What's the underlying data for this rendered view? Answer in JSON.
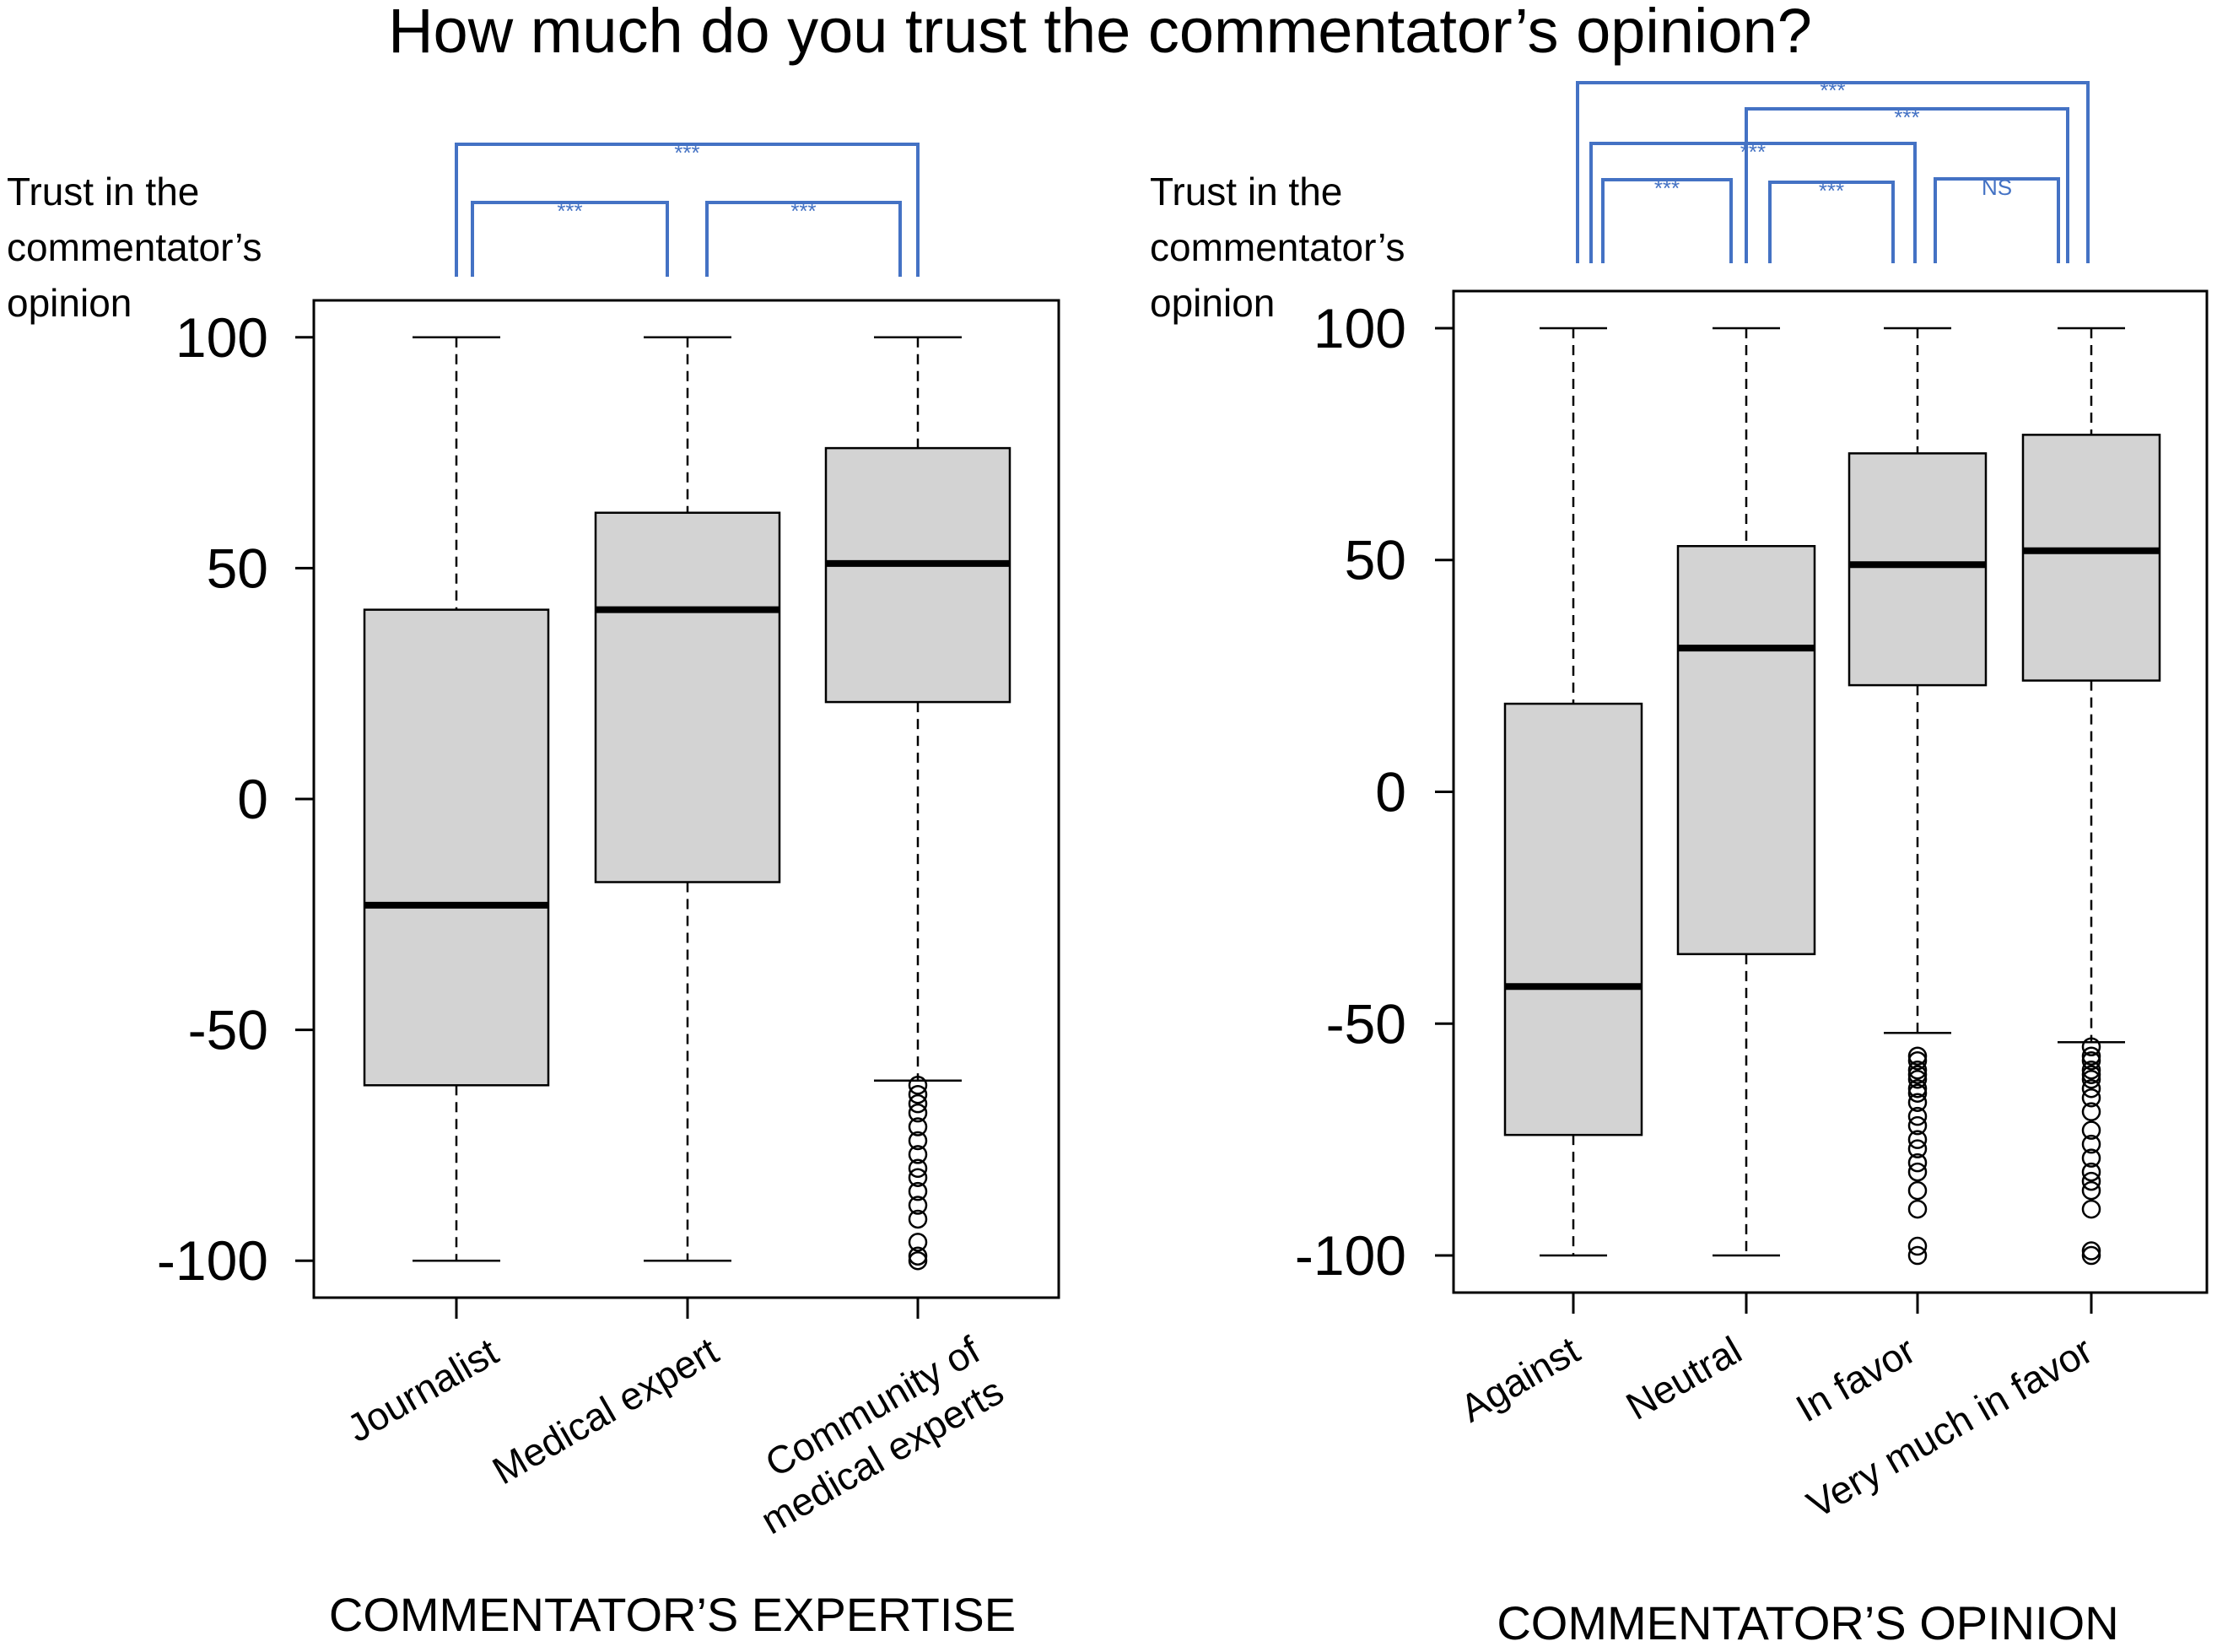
{
  "title": "How much do you trust the commentator’s opinion?",
  "chart_data": [
    {
      "type": "box",
      "xlabel": "COMMENTATOR’S EXPERTISE",
      "ylabel": [
        "Trust in the",
        "commentator’s",
        "opinion"
      ],
      "ylim": [
        -108,
        108
      ],
      "yticks": [
        "100",
        "50",
        "0",
        "-50",
        "-100"
      ],
      "boxes": [
        {
          "category": [
            "Journalist"
          ],
          "min": -100,
          "q1": -62,
          "median": -23,
          "q3": 41,
          "max": 100,
          "outliers": []
        },
        {
          "category": [
            "Medical expert"
          ],
          "min": -100,
          "q1": -18,
          "median": 41,
          "q3": 62,
          "max": 100,
          "outliers": []
        },
        {
          "category": [
            "Community of",
            "medical experts"
          ],
          "min": -61,
          "q1": 21,
          "median": 51,
          "q3": 76,
          "max": 100,
          "outliers": [
            -62,
            -64,
            -66,
            -68,
            -71,
            -74,
            -77,
            -80,
            -82,
            -85,
            -88,
            -91,
            -96,
            -99,
            -100
          ]
        }
      ],
      "comparisons": [
        {
          "groups": [
            0,
            2
          ],
          "label": "***"
        },
        {
          "groups": [
            0,
            1
          ],
          "label": "***"
        },
        {
          "groups": [
            1,
            2
          ],
          "label": "***"
        }
      ]
    },
    {
      "type": "box",
      "xlabel": "COMMENTATOR’S OPINION",
      "ylabel": [
        "Trust in the",
        "commentator’s",
        "opinion"
      ],
      "ylim": [
        -108,
        108
      ],
      "yticks": [
        "100",
        "50",
        "0",
        "-50",
        "-100"
      ],
      "boxes": [
        {
          "category": [
            "Against"
          ],
          "min": -100,
          "q1": -74,
          "median": -42,
          "q3": 19,
          "max": 100,
          "outliers": []
        },
        {
          "category": [
            "Neutral"
          ],
          "min": -100,
          "q1": -35,
          "median": 31,
          "q3": 53,
          "max": 100,
          "outliers": []
        },
        {
          "category": [
            "In favor"
          ],
          "min": -52,
          "q1": 23,
          "median": 49,
          "q3": 73,
          "max": 100,
          "outliers": [
            -57,
            -58,
            -60,
            -61,
            -62,
            -64,
            -65,
            -67,
            -70,
            -72,
            -75,
            -77,
            -80,
            -82,
            -86,
            -90,
            -98,
            -100
          ]
        },
        {
          "category": [
            "Very much in favor"
          ],
          "min": -54,
          "q1": 24,
          "median": 52,
          "q3": 77,
          "max": 100,
          "outliers": [
            -55,
            -57,
            -58,
            -60,
            -61,
            -62,
            -64,
            -66,
            -69,
            -73,
            -76,
            -79,
            -82,
            -84,
            -86,
            -90,
            -99,
            -100
          ]
        }
      ],
      "comparisons": [
        {
          "groups": [
            0,
            3
          ],
          "label": "***"
        },
        {
          "groups": [
            1,
            3
          ],
          "label": "***"
        },
        {
          "groups": [
            0,
            2
          ],
          "label": "***"
        },
        {
          "groups": [
            0,
            1
          ],
          "label": "***"
        },
        {
          "groups": [
            1,
            2
          ],
          "label": "***"
        },
        {
          "groups": [
            2,
            3
          ],
          "label": "NS"
        }
      ]
    }
  ]
}
